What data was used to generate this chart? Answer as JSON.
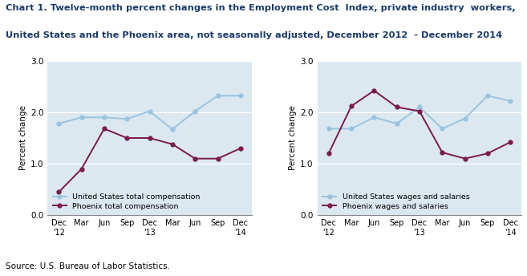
{
  "title_line1": "Chart 1. Twelve-month percent changes in the Employment Cost  Index, private industry  workers,",
  "title_line2": "United States and the Phoenix area, not seasonally adjusted, December 2012  - December 2014",
  "x_labels": [
    "Dec\n'12",
    "Mar",
    "Jun",
    "Sep",
    "Dec\n'13",
    "Mar",
    "Jun",
    "Sep",
    "Dec\n'14"
  ],
  "left_chart": {
    "ylabel": "Percent change",
    "us_total_comp": [
      1.78,
      1.9,
      1.9,
      1.87,
      2.02,
      1.67,
      2.02,
      2.32,
      2.32
    ],
    "phoenix_total_comp": [
      0.45,
      0.9,
      1.68,
      1.5,
      1.5,
      1.38,
      1.1,
      1.1,
      1.3
    ],
    "us_label": "United States total compensation",
    "phoenix_label": "Phoenix total compensation",
    "ylim": [
      0.0,
      3.0
    ],
    "yticks": [
      0.0,
      1.0,
      2.0,
      3.0
    ]
  },
  "right_chart": {
    "ylabel": "Percent change",
    "us_wages": [
      1.68,
      1.68,
      1.9,
      1.78,
      2.1,
      1.68,
      1.88,
      2.32,
      2.22
    ],
    "phoenix_wages": [
      1.2,
      2.12,
      2.42,
      2.1,
      2.02,
      1.22,
      1.1,
      1.2,
      1.42
    ],
    "us_label": "United States wages and salaries",
    "phoenix_label": "Phoenix wages and salaries",
    "ylim": [
      0.0,
      3.0
    ],
    "yticks": [
      0.0,
      1.0,
      2.0,
      3.0
    ]
  },
  "us_color": "#99c4e0",
  "phoenix_color": "#7b1a4b",
  "source": "Source: U.S. Bureau of Labor Statistics.",
  "grid_color": "#b0b0b0",
  "bg_color": "#dce8f0"
}
